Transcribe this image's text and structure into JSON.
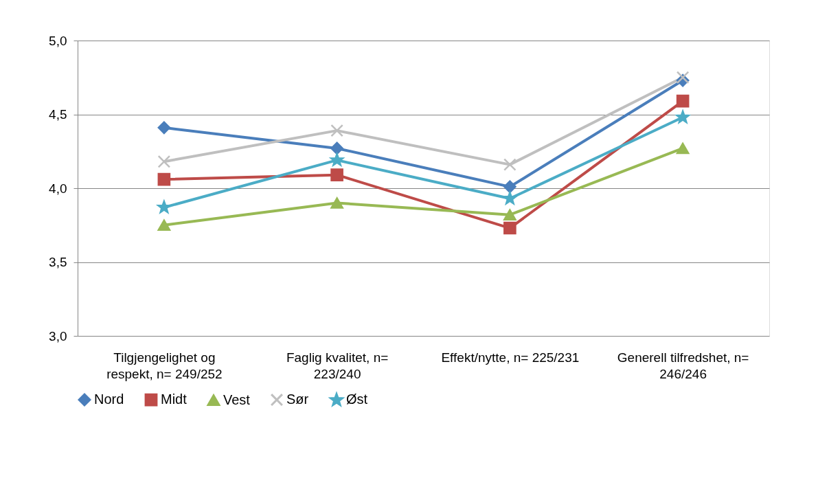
{
  "chart_data": {
    "type": "line",
    "categories": [
      "Tilgjengelighet og respekt, n= 249/252",
      "Faglig kvalitet, n= 223/240",
      "Effekt/nytte, n= 225/231",
      "Generell tilfredshet, n= 246/246"
    ],
    "series": [
      {
        "name": "Nord",
        "color": "#4a7ebb",
        "marker": "diamond",
        "values": [
          4.41,
          4.27,
          4.01,
          4.73
        ]
      },
      {
        "name": "Midt",
        "color": "#be4b48",
        "marker": "square",
        "values": [
          4.06,
          4.09,
          3.73,
          4.59
        ]
      },
      {
        "name": "Vest",
        "color": "#98b954",
        "marker": "triangle",
        "values": [
          3.75,
          3.9,
          3.82,
          4.27
        ]
      },
      {
        "name": "Sør",
        "color": "#bfbfbf",
        "marker": "cross",
        "values": [
          4.18,
          4.39,
          4.16,
          4.75
        ]
      },
      {
        "name": "Øst",
        "color": "#4bacc6",
        "marker": "star",
        "values": [
          3.87,
          4.19,
          3.93,
          4.48
        ]
      }
    ],
    "ylim": [
      3.0,
      5.0
    ],
    "yticks": [
      {
        "value": 3.0,
        "label": "3,0"
      },
      {
        "value": 3.5,
        "label": "3,5"
      },
      {
        "value": 4.0,
        "label": "4,0"
      },
      {
        "value": 4.5,
        "label": "4,5"
      },
      {
        "value": 5.0,
        "label": "5,0"
      }
    ],
    "grid": "y",
    "legend": "bottom",
    "line_style": "solid"
  }
}
